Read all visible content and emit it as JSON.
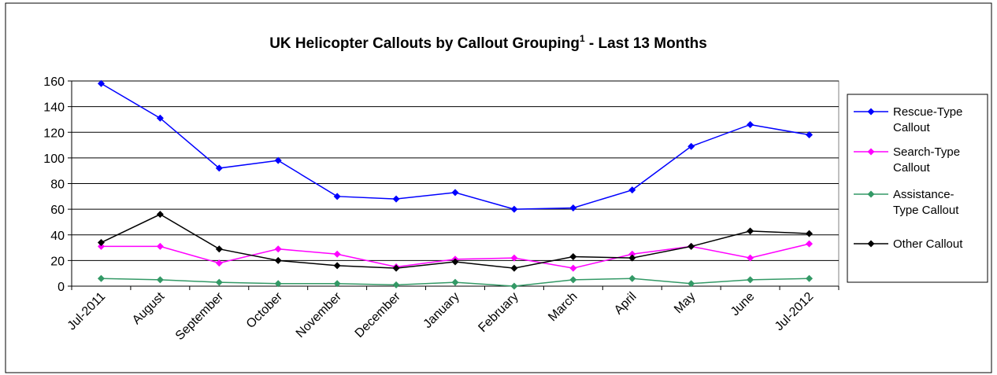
{
  "chart_data": {
    "type": "line",
    "title": "UK Helicopter Callouts by Callout Grouping",
    "title_superscript": "1",
    "title_suffix": " - Last 13 Months",
    "categories": [
      "Jul-2011",
      "August",
      "September",
      "October",
      "November",
      "December",
      "January",
      "February",
      "March",
      "April",
      "May",
      "June",
      "Jul-2012"
    ],
    "ylim": [
      0,
      160
    ],
    "yticks": [
      0,
      20,
      40,
      60,
      80,
      100,
      120,
      140,
      160
    ],
    "grid": true,
    "legend": "right",
    "series": [
      {
        "name": "Rescue-Type Callout",
        "color": "#0000ff",
        "values": [
          158,
          131,
          92,
          98,
          70,
          68,
          73,
          60,
          61,
          75,
          109,
          126,
          118
        ]
      },
      {
        "name": "Search-Type Callout",
        "color": "#ff00ff",
        "values": [
          31,
          31,
          18,
          29,
          25,
          15,
          21,
          22,
          14,
          25,
          31,
          22,
          33
        ]
      },
      {
        "name": "Assistance-Type Callout",
        "color": "#339966",
        "values": [
          6,
          5,
          3,
          2,
          2,
          1,
          3,
          0,
          5,
          6,
          2,
          5,
          6
        ]
      },
      {
        "name": "Other Callout",
        "color": "#000000",
        "values": [
          34,
          56,
          29,
          20,
          16,
          14,
          19,
          14,
          23,
          22,
          31,
          43,
          41
        ]
      }
    ]
  }
}
